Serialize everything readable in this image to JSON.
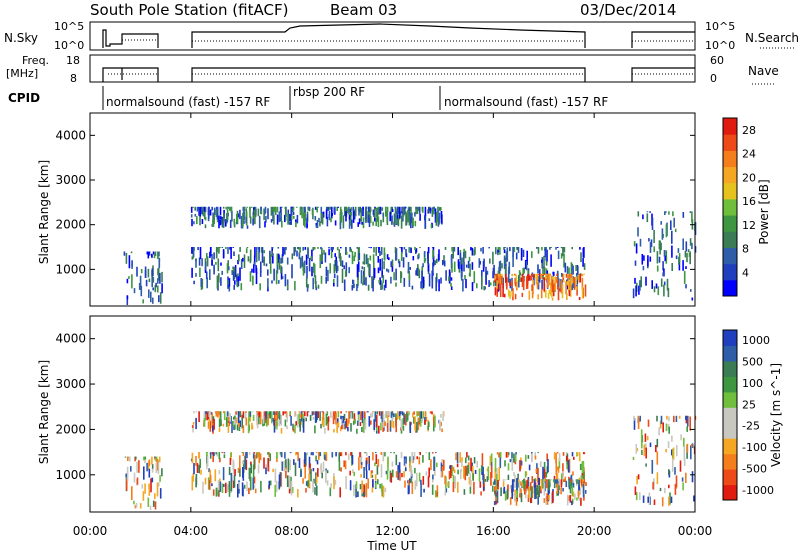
{
  "header": {
    "station": "South Pole Station (fitACF)",
    "beam": "Beam 03",
    "date": "03/Dec/2014"
  },
  "noise_panel": {
    "left_label": "N.Sky",
    "right_label": "N.Search",
    "left_ticks": [
      "10^5",
      "10^0"
    ],
    "right_ticks": [
      "10^5",
      "10^0"
    ]
  },
  "freq_panel": {
    "left_label_line1": "Freq.",
    "left_label_line2": "[MHz]",
    "right_label": "Nave",
    "left_ticks": [
      "18",
      "8"
    ],
    "right_ticks": [
      "60",
      "0"
    ]
  },
  "cpid": {
    "label": "CPID",
    "segments": [
      "normalsound (fast) -157 RF",
      "rbsp 200 RF",
      "normalsound (fast) -157 RF"
    ]
  },
  "chart_data": [
    {
      "type": "heatmap",
      "title": "",
      "xlabel": "",
      "ylabel": "Slant Range [km]",
      "x_ticks": [
        "00:00",
        "04:00",
        "08:00",
        "12:00",
        "16:00",
        "20:00",
        "00:00"
      ],
      "y_ticks": [
        "1000",
        "2000",
        "3000",
        "4000"
      ],
      "xlim": [
        "00:00",
        "24:00"
      ],
      "ylim": [
        180,
        4500
      ],
      "colorbar": {
        "label": "Power [dB]",
        "ticks": [
          "4",
          "8",
          "12",
          "16",
          "20",
          "24",
          "28"
        ],
        "range": [
          0,
          30
        ],
        "colors": [
          "#0000ff",
          "#1f3fbf",
          "#2e5ea8",
          "#3a7d55",
          "#3e9640",
          "#6fbf3c",
          "#e6c21e",
          "#f5a623",
          "#f47d1c",
          "#ee4a17",
          "#e01b10"
        ]
      },
      "features": [
        {
          "start": "01:20",
          "end": "02:50",
          "range_min": 200,
          "range_max": 1400
        },
        {
          "start": "04:00",
          "end": "14:00",
          "range_min": 1900,
          "range_max": 2400
        },
        {
          "start": "04:00",
          "end": "19:40",
          "range_min": 500,
          "range_max": 1500
        },
        {
          "start": "16:00",
          "end": "19:40",
          "range_min": 300,
          "range_max": 900
        },
        {
          "start": "21:30",
          "end": "24:00",
          "range_min": 300,
          "range_max": 2300
        }
      ]
    },
    {
      "type": "heatmap",
      "title": "",
      "xlabel": "Time UT",
      "ylabel": "Slant Range [km]",
      "x_ticks": [
        "00:00",
        "04:00",
        "08:00",
        "12:00",
        "16:00",
        "20:00",
        "00:00"
      ],
      "y_ticks": [
        "1000",
        "2000",
        "3000",
        "4000"
      ],
      "xlim": [
        "00:00",
        "24:00"
      ],
      "ylim": [
        180,
        4500
      ],
      "colorbar": {
        "label": "Velocity [m s^-1]",
        "ticks": [
          "1000",
          "500",
          "100",
          "25",
          "-25",
          "-100",
          "-500",
          "-1000"
        ],
        "range": [
          -1200,
          1200
        ],
        "colors": [
          "#e01b10",
          "#ee4a17",
          "#f47d1c",
          "#f5a623",
          "#c8c8c0",
          "#c8c8c0",
          "#6fbf3c",
          "#3e9640",
          "#3a7d55",
          "#2e5ea8",
          "#1f3fbf"
        ]
      },
      "features": [
        {
          "start": "01:20",
          "end": "02:50",
          "range_min": 200,
          "range_max": 1400
        },
        {
          "start": "04:00",
          "end": "14:00",
          "range_min": 1900,
          "range_max": 2400
        },
        {
          "start": "04:00",
          "end": "19:40",
          "range_min": 500,
          "range_max": 1500
        },
        {
          "start": "16:00",
          "end": "19:40",
          "range_min": 300,
          "range_max": 900
        },
        {
          "start": "21:30",
          "end": "24:00",
          "range_min": 300,
          "range_max": 2300
        }
      ]
    }
  ]
}
